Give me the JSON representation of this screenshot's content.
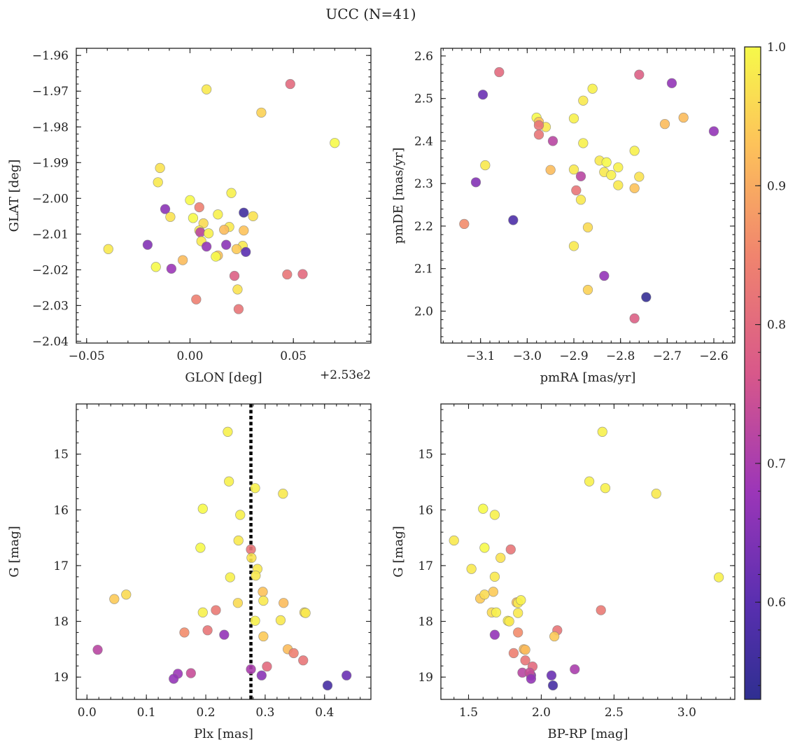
{
  "figure": {
    "title": "UCC (N=41)"
  },
  "colorbar": {
    "min": 0.53,
    "max": 1.0,
    "ticks": [
      "0.6",
      "0.7",
      "0.8",
      "0.9",
      "1.0"
    ],
    "colormap": "plasma"
  },
  "chart_data": [
    {
      "type": "scatter",
      "xlabel": "GLON [deg]",
      "ylabel": "GLAT [deg]",
      "offset_text": "+2.53e2",
      "xlim": [
        252.945,
        253.0875
      ],
      "ylim": [
        -2.0405,
        -1.958
      ],
      "xticks": [
        252.95,
        253.0,
        253.05
      ],
      "xtick_labels": [
        "−0.05",
        "0.00",
        "0.05"
      ],
      "yticks": [
        -2.04,
        -2.03,
        -2.02,
        -2.01,
        -2.0,
        -1.99,
        -1.98,
        -1.97,
        -1.96
      ],
      "ytick_labels": [
        "−2.04",
        "−2.03",
        "−2.02",
        "−2.01",
        "−2.00",
        "−1.99",
        "−1.98",
        "−1.97",
        "−1.96"
      ],
      "points": [
        {
          "x": 253.0485,
          "y": -1.968,
          "c": 0.8
        },
        {
          "x": 253.008,
          "y": -1.9695,
          "c": 0.98
        },
        {
          "x": 253.0345,
          "y": -1.976,
          "c": 0.95
        },
        {
          "x": 253.07,
          "y": -1.9845,
          "c": 1.0
        },
        {
          "x": 252.9855,
          "y": -1.9915,
          "c": 0.97
        },
        {
          "x": 252.9845,
          "y": -1.9955,
          "c": 0.98
        },
        {
          "x": 253.02,
          "y": -1.9985,
          "c": 0.99
        },
        {
          "x": 253.0,
          "y": -2.0005,
          "c": 1.0
        },
        {
          "x": 253.0045,
          "y": -2.0025,
          "c": 0.84
        },
        {
          "x": 252.988,
          "y": -2.003,
          "c": 0.66
        },
        {
          "x": 253.0135,
          "y": -2.0045,
          "c": 0.99
        },
        {
          "x": 253.026,
          "y": -2.004,
          "c": 0.56
        },
        {
          "x": 253.0305,
          "y": -2.005,
          "c": 0.97
        },
        {
          "x": 252.9905,
          "y": -2.0052,
          "c": 0.97
        },
        {
          "x": 253.0015,
          "y": -2.0055,
          "c": 1.0
        },
        {
          "x": 253.0065,
          "y": -2.007,
          "c": 0.96
        },
        {
          "x": 253.019,
          "y": -2.008,
          "c": 0.98
        },
        {
          "x": 253.0165,
          "y": -2.0088,
          "c": 0.92
        },
        {
          "x": 253.026,
          "y": -2.009,
          "c": 0.93
        },
        {
          "x": 253.0045,
          "y": -2.009,
          "c": 0.98
        },
        {
          "x": 253.005,
          "y": -2.0095,
          "c": 0.72
        },
        {
          "x": 253.009,
          "y": -2.0098,
          "c": 0.99
        },
        {
          "x": 253.0055,
          "y": -2.012,
          "c": 0.98
        },
        {
          "x": 252.9795,
          "y": -2.013,
          "c": 0.65
        },
        {
          "x": 253.008,
          "y": -2.0135,
          "c": 0.67
        },
        {
          "x": 253.0175,
          "y": -2.013,
          "c": 0.66
        },
        {
          "x": 253.0255,
          "y": -2.0133,
          "c": 0.98
        },
        {
          "x": 253.0225,
          "y": -2.0142,
          "c": 0.94
        },
        {
          "x": 253.027,
          "y": -2.015,
          "c": 0.6
        },
        {
          "x": 252.9605,
          "y": -2.0142,
          "c": 0.98
        },
        {
          "x": 253.0135,
          "y": -2.016,
          "c": 0.93
        },
        {
          "x": 253.0125,
          "y": -2.0163,
          "c": 1.0
        },
        {
          "x": 252.9965,
          "y": -2.0173,
          "c": 0.92
        },
        {
          "x": 252.9835,
          "y": -2.0192,
          "c": 1.0
        },
        {
          "x": 252.991,
          "y": -2.0197,
          "c": 0.68
        },
        {
          "x": 253.0215,
          "y": -2.0217,
          "c": 0.78
        },
        {
          "x": 253.047,
          "y": -2.0213,
          "c": 0.82
        },
        {
          "x": 253.0545,
          "y": -2.0212,
          "c": 0.8
        },
        {
          "x": 253.023,
          "y": -2.0255,
          "c": 0.97
        },
        {
          "x": 253.003,
          "y": -2.0283,
          "c": 0.84
        },
        {
          "x": 253.0235,
          "y": -2.031,
          "c": 0.82
        }
      ]
    },
    {
      "type": "scatter",
      "xlabel": "pmRA [mas/yr]",
      "ylabel": "pmDE [mas/yr]",
      "xlim": [
        -3.185,
        -2.555
      ],
      "ylim": [
        1.925,
        2.618
      ],
      "xticks": [
        -3.1,
        -3.0,
        -2.9,
        -2.8,
        -2.7,
        -2.6
      ],
      "xtick_labels": [
        "−3.1",
        "−3.0",
        "−2.9",
        "−2.8",
        "−2.7",
        "−2.6"
      ],
      "yticks": [
        2.0,
        2.1,
        2.2,
        2.3,
        2.4,
        2.5,
        2.6
      ],
      "ytick_labels": [
        "2.0",
        "2.1",
        "2.2",
        "2.3",
        "2.4",
        "2.5",
        "2.6"
      ],
      "points": [
        {
          "x": -3.06,
          "y": 2.562,
          "c": 0.8
        },
        {
          "x": -2.76,
          "y": 2.556,
          "c": 0.78
        },
        {
          "x": -3.095,
          "y": 2.509,
          "c": 0.62
        },
        {
          "x": -2.69,
          "y": 2.536,
          "c": 0.67
        },
        {
          "x": -2.86,
          "y": 2.523,
          "c": 0.99
        },
        {
          "x": -2.88,
          "y": 2.495,
          "c": 0.98
        },
        {
          "x": -2.98,
          "y": 2.455,
          "c": 1.0
        },
        {
          "x": -2.9,
          "y": 2.453,
          "c": 0.99
        },
        {
          "x": -2.975,
          "y": 2.445,
          "c": 0.93
        },
        {
          "x": -2.96,
          "y": 2.433,
          "c": 0.98
        },
        {
          "x": -2.975,
          "y": 2.437,
          "c": 0.82
        },
        {
          "x": -2.665,
          "y": 2.455,
          "c": 0.92
        },
        {
          "x": -2.705,
          "y": 2.44,
          "c": 0.92
        },
        {
          "x": -2.6,
          "y": 2.423,
          "c": 0.67
        },
        {
          "x": -2.975,
          "y": 2.415,
          "c": 0.82
        },
        {
          "x": -2.945,
          "y": 2.4,
          "c": 0.72
        },
        {
          "x": -2.88,
          "y": 2.395,
          "c": 0.99
        },
        {
          "x": -2.77,
          "y": 2.377,
          "c": 0.99
        },
        {
          "x": -2.845,
          "y": 2.354,
          "c": 0.98
        },
        {
          "x": -2.83,
          "y": 2.35,
          "c": 1.0
        },
        {
          "x": -3.09,
          "y": 2.343,
          "c": 0.98
        },
        {
          "x": -2.805,
          "y": 2.338,
          "c": 0.99
        },
        {
          "x": -2.9,
          "y": 2.333,
          "c": 0.98
        },
        {
          "x": -2.95,
          "y": 2.332,
          "c": 0.92
        },
        {
          "x": -2.835,
          "y": 2.327,
          "c": 0.98
        },
        {
          "x": -2.82,
          "y": 2.32,
          "c": 0.99
        },
        {
          "x": -2.885,
          "y": 2.317,
          "c": 0.72
        },
        {
          "x": -2.76,
          "y": 2.316,
          "c": 0.97
        },
        {
          "x": -3.11,
          "y": 2.303,
          "c": 0.65
        },
        {
          "x": -2.805,
          "y": 2.296,
          "c": 0.98
        },
        {
          "x": -2.77,
          "y": 2.289,
          "c": 0.93
        },
        {
          "x": -2.895,
          "y": 2.284,
          "c": 0.82
        },
        {
          "x": -2.885,
          "y": 2.262,
          "c": 0.98
        },
        {
          "x": -3.03,
          "y": 2.214,
          "c": 0.58
        },
        {
          "x": -3.135,
          "y": 2.205,
          "c": 0.86
        },
        {
          "x": -2.87,
          "y": 2.197,
          "c": 0.96
        },
        {
          "x": -2.9,
          "y": 2.153,
          "c": 0.98
        },
        {
          "x": -2.835,
          "y": 2.083,
          "c": 0.67
        },
        {
          "x": -2.87,
          "y": 2.05,
          "c": 0.95
        },
        {
          "x": -2.745,
          "y": 2.033,
          "c": 0.54
        },
        {
          "x": -2.77,
          "y": 1.983,
          "c": 0.78
        }
      ]
    },
    {
      "type": "scatter",
      "xlabel": "Plx [mas]",
      "ylabel": "G [mag]",
      "xlim": [
        -0.018,
        0.478
      ],
      "ylim": [
        19.4,
        14.1
      ],
      "y_inverted": true,
      "vline": 0.276,
      "xticks": [
        0.0,
        0.1,
        0.2,
        0.3,
        0.4
      ],
      "xtick_labels": [
        "0.0",
        "0.1",
        "0.2",
        "0.3",
        "0.4"
      ],
      "yticks": [
        15,
        16,
        17,
        18,
        19
      ],
      "ytick_labels": [
        "15",
        "16",
        "17",
        "18",
        "19"
      ],
      "points": [
        {
          "x": 0.237,
          "y": 14.6,
          "c": 0.99
        },
        {
          "x": 0.239,
          "y": 15.49,
          "c": 0.99
        },
        {
          "x": 0.283,
          "y": 15.61,
          "c": 0.99
        },
        {
          "x": 0.33,
          "y": 15.71,
          "c": 0.98
        },
        {
          "x": 0.195,
          "y": 15.98,
          "c": 1.0
        },
        {
          "x": 0.258,
          "y": 16.09,
          "c": 0.99
        },
        {
          "x": 0.255,
          "y": 16.55,
          "c": 0.98
        },
        {
          "x": 0.191,
          "y": 16.68,
          "c": 1.0
        },
        {
          "x": 0.276,
          "y": 16.71,
          "c": 0.82
        },
        {
          "x": 0.277,
          "y": 16.86,
          "c": 0.97
        },
        {
          "x": 0.287,
          "y": 17.06,
          "c": 0.98
        },
        {
          "x": 0.284,
          "y": 17.18,
          "c": 0.98
        },
        {
          "x": 0.241,
          "y": 17.21,
          "c": 0.99
        },
        {
          "x": 0.066,
          "y": 17.52,
          "c": 0.96
        },
        {
          "x": 0.046,
          "y": 17.6,
          "c": 0.94
        },
        {
          "x": 0.296,
          "y": 17.47,
          "c": 0.93
        },
        {
          "x": 0.297,
          "y": 17.63,
          "c": 0.98
        },
        {
          "x": 0.254,
          "y": 17.67,
          "c": 0.96
        },
        {
          "x": 0.331,
          "y": 17.67,
          "c": 0.92
        },
        {
          "x": 0.217,
          "y": 17.8,
          "c": 0.83
        },
        {
          "x": 0.195,
          "y": 17.84,
          "c": 0.99
        },
        {
          "x": 0.366,
          "y": 17.84,
          "c": 0.96
        },
        {
          "x": 0.368,
          "y": 17.85,
          "c": 0.98
        },
        {
          "x": 0.283,
          "y": 17.99,
          "c": 0.99
        },
        {
          "x": 0.326,
          "y": 17.98,
          "c": 0.98
        },
        {
          "x": 0.164,
          "y": 18.2,
          "c": 0.86
        },
        {
          "x": 0.203,
          "y": 18.16,
          "c": 0.82
        },
        {
          "x": 0.231,
          "y": 18.24,
          "c": 0.67
        },
        {
          "x": 0.297,
          "y": 18.27,
          "c": 0.94
        },
        {
          "x": 0.338,
          "y": 18.5,
          "c": 0.92
        },
        {
          "x": 0.348,
          "y": 18.57,
          "c": 0.84
        },
        {
          "x": 0.018,
          "y": 18.51,
          "c": 0.72
        },
        {
          "x": 0.364,
          "y": 18.7,
          "c": 0.82
        },
        {
          "x": 0.303,
          "y": 18.81,
          "c": 0.8
        },
        {
          "x": 0.276,
          "y": 18.86,
          "c": 0.7
        },
        {
          "x": 0.294,
          "y": 18.97,
          "c": 0.66
        },
        {
          "x": 0.153,
          "y": 18.94,
          "c": 0.68
        },
        {
          "x": 0.175,
          "y": 18.93,
          "c": 0.74
        },
        {
          "x": 0.146,
          "y": 19.03,
          "c": 0.67
        },
        {
          "x": 0.437,
          "y": 18.97,
          "c": 0.62
        },
        {
          "x": 0.405,
          "y": 19.15,
          "c": 0.57
        }
      ]
    },
    {
      "type": "scatter",
      "xlabel": "BP-RP [mag]",
      "ylabel": "G [mag]",
      "xlim": [
        1.31,
        3.33
      ],
      "ylim": [
        19.4,
        14.1
      ],
      "y_inverted": true,
      "xticks": [
        1.5,
        2.0,
        2.5,
        3.0
      ],
      "xtick_labels": [
        "1.5",
        "2.0",
        "2.5",
        "3.0"
      ],
      "yticks": [
        15,
        16,
        17,
        18,
        19
      ],
      "ytick_labels": [
        "15",
        "16",
        "17",
        "18",
        "19"
      ],
      "points": [
        {
          "x": 2.42,
          "y": 14.6,
          "c": 0.99
        },
        {
          "x": 2.33,
          "y": 15.49,
          "c": 0.99
        },
        {
          "x": 2.44,
          "y": 15.61,
          "c": 0.99
        },
        {
          "x": 2.79,
          "y": 15.71,
          "c": 0.98
        },
        {
          "x": 1.6,
          "y": 15.98,
          "c": 1.0
        },
        {
          "x": 1.68,
          "y": 16.09,
          "c": 0.99
        },
        {
          "x": 1.4,
          "y": 16.55,
          "c": 0.98
        },
        {
          "x": 1.61,
          "y": 16.68,
          "c": 1.0
        },
        {
          "x": 1.79,
          "y": 16.71,
          "c": 0.82
        },
        {
          "x": 1.72,
          "y": 16.86,
          "c": 0.97
        },
        {
          "x": 1.52,
          "y": 17.06,
          "c": 0.98
        },
        {
          "x": 1.68,
          "y": 17.2,
          "c": 0.98
        },
        {
          "x": 3.22,
          "y": 17.21,
          "c": 0.99
        },
        {
          "x": 1.67,
          "y": 17.47,
          "c": 0.94
        },
        {
          "x": 1.58,
          "y": 17.59,
          "c": 0.94
        },
        {
          "x": 1.61,
          "y": 17.52,
          "c": 0.96
        },
        {
          "x": 1.83,
          "y": 17.66,
          "c": 0.92
        },
        {
          "x": 1.84,
          "y": 17.67,
          "c": 0.98
        },
        {
          "x": 1.86,
          "y": 17.62,
          "c": 0.99
        },
        {
          "x": 2.41,
          "y": 17.8,
          "c": 0.83
        },
        {
          "x": 1.66,
          "y": 17.84,
          "c": 0.96
        },
        {
          "x": 1.69,
          "y": 17.84,
          "c": 0.99
        },
        {
          "x": 1.84,
          "y": 17.85,
          "c": 0.98
        },
        {
          "x": 1.77,
          "y": 17.99,
          "c": 0.99
        },
        {
          "x": 1.78,
          "y": 18.0,
          "c": 0.98
        },
        {
          "x": 1.84,
          "y": 18.2,
          "c": 0.86
        },
        {
          "x": 2.11,
          "y": 18.16,
          "c": 0.82
        },
        {
          "x": 1.68,
          "y": 18.24,
          "c": 0.67
        },
        {
          "x": 2.09,
          "y": 18.27,
          "c": 0.94
        },
        {
          "x": 1.88,
          "y": 18.5,
          "c": 0.92
        },
        {
          "x": 1.81,
          "y": 18.57,
          "c": 0.84
        },
        {
          "x": 1.89,
          "y": 18.51,
          "c": 0.92
        },
        {
          "x": 1.89,
          "y": 18.7,
          "c": 0.82
        },
        {
          "x": 1.94,
          "y": 18.81,
          "c": 0.8
        },
        {
          "x": 2.23,
          "y": 18.86,
          "c": 0.7
        },
        {
          "x": 1.93,
          "y": 18.97,
          "c": 0.66
        },
        {
          "x": 1.87,
          "y": 18.92,
          "c": 0.72
        },
        {
          "x": 1.92,
          "y": 18.92,
          "c": 0.74
        },
        {
          "x": 1.93,
          "y": 19.03,
          "c": 0.67
        },
        {
          "x": 2.07,
          "y": 18.97,
          "c": 0.62
        },
        {
          "x": 2.08,
          "y": 19.15,
          "c": 0.57
        }
      ]
    }
  ]
}
